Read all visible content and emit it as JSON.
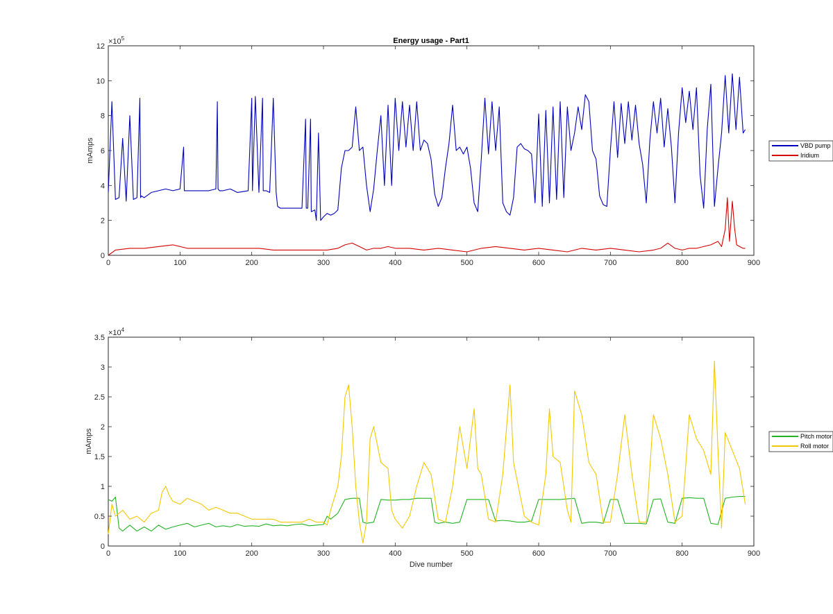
{
  "chart_data": [
    {
      "type": "line",
      "title": "Energy usage - Part1",
      "xlabel": "",
      "ylabel": "mAmps",
      "xlim": [
        0,
        900
      ],
      "ylim": [
        0,
        1200000
      ],
      "xticks": [
        0,
        100,
        200,
        300,
        400,
        500,
        600,
        700,
        800,
        900
      ],
      "yticks": [
        0,
        200000,
        400000,
        600000,
        800000,
        1000000,
        1200000
      ],
      "ytick_labels": [
        "0",
        "2",
        "4",
        "6",
        "8",
        "10",
        "12"
      ],
      "exponent_label": "×10",
      "exponent_power": "5",
      "legend_position": "outside-right",
      "series": [
        {
          "name": "VBD pump",
          "color": "#0000b8",
          "x": [
            0,
            5,
            10,
            15,
            20,
            25,
            30,
            35,
            40,
            44,
            45,
            46,
            50,
            60,
            70,
            80,
            90,
            100,
            105,
            106,
            110,
            120,
            130,
            140,
            150,
            152,
            153,
            155,
            160,
            170,
            180,
            195,
            200,
            201,
            205,
            210,
            215,
            216,
            220,
            225,
            230,
            234,
            236,
            240,
            250,
            260,
            270,
            275,
            276,
            278,
            282,
            283,
            288,
            290,
            293,
            296,
            300,
            305,
            310,
            315,
            320,
            325,
            330,
            335,
            340,
            345,
            350,
            355,
            360,
            365,
            370,
            375,
            380,
            385,
            390,
            395,
            400,
            405,
            410,
            415,
            420,
            425,
            430,
            435,
            440,
            445,
            450,
            455,
            460,
            465,
            470,
            475,
            480,
            485,
            490,
            495,
            500,
            505,
            510,
            515,
            520,
            525,
            530,
            535,
            540,
            545,
            550,
            555,
            560,
            565,
            570,
            575,
            580,
            585,
            590,
            595,
            600,
            605,
            610,
            615,
            620,
            625,
            630,
            635,
            640,
            645,
            650,
            655,
            660,
            665,
            670,
            675,
            680,
            685,
            690,
            695,
            700,
            705,
            710,
            715,
            720,
            725,
            730,
            735,
            740,
            745,
            750,
            755,
            760,
            765,
            770,
            775,
            780,
            785,
            790,
            795,
            800,
            805,
            810,
            815,
            820,
            825,
            830,
            835,
            840,
            845,
            850,
            855,
            860,
            865,
            870,
            875,
            880,
            885,
            888
          ],
          "y": [
            360000,
            880000,
            320000,
            330000,
            670000,
            310000,
            800000,
            320000,
            330000,
            900000,
            330000,
            340000,
            330000,
            360000,
            370000,
            380000,
            370000,
            380000,
            620000,
            370000,
            370000,
            370000,
            370000,
            370000,
            380000,
            880000,
            380000,
            370000,
            370000,
            380000,
            360000,
            370000,
            900000,
            370000,
            910000,
            360000,
            900000,
            370000,
            370000,
            360000,
            900000,
            360000,
            280000,
            270000,
            270000,
            270000,
            270000,
            780000,
            270000,
            270000,
            780000,
            250000,
            260000,
            200000,
            700000,
            200000,
            220000,
            240000,
            230000,
            240000,
            260000,
            500000,
            600000,
            600000,
            620000,
            850000,
            600000,
            620000,
            400000,
            250000,
            380000,
            600000,
            800000,
            400000,
            860000,
            400000,
            900000,
            600000,
            880000,
            620000,
            860000,
            600000,
            880000,
            600000,
            660000,
            640000,
            550000,
            350000,
            280000,
            330000,
            500000,
            640000,
            860000,
            600000,
            620000,
            580000,
            620000,
            500000,
            300000,
            250000,
            550000,
            900000,
            580000,
            880000,
            600000,
            850000,
            300000,
            250000,
            230000,
            330000,
            620000,
            640000,
            610000,
            600000,
            580000,
            300000,
            810000,
            280000,
            830000,
            300000,
            850000,
            320000,
            880000,
            330000,
            850000,
            600000,
            700000,
            850000,
            720000,
            920000,
            880000,
            600000,
            550000,
            340000,
            290000,
            280000,
            600000,
            880000,
            560000,
            870000,
            640000,
            880000,
            660000,
            860000,
            640000,
            520000,
            300000,
            660000,
            880000,
            700000,
            900000,
            620000,
            840000,
            620000,
            300000,
            700000,
            960000,
            760000,
            940000,
            720000,
            960000,
            460000,
            270000,
            720000,
            980000,
            280000,
            500000,
            700000,
            1030000,
            700000,
            1040000,
            720000,
            1020000,
            700000,
            720000
          ]
        },
        {
          "name": "Iridium",
          "color": "#d40000",
          "x": [
            0,
            10,
            30,
            50,
            70,
            90,
            110,
            130,
            150,
            170,
            190,
            210,
            230,
            250,
            270,
            290,
            305,
            320,
            330,
            340,
            350,
            360,
            370,
            380,
            390,
            400,
            410,
            420,
            440,
            460,
            480,
            500,
            520,
            540,
            560,
            580,
            600,
            620,
            640,
            660,
            680,
            700,
            720,
            740,
            760,
            770,
            780,
            790,
            800,
            810,
            820,
            830,
            840,
            850,
            855,
            860,
            863,
            866,
            870,
            873,
            876,
            880,
            885,
            888
          ],
          "y": [
            0,
            30000,
            40000,
            40000,
            50000,
            60000,
            40000,
            40000,
            40000,
            40000,
            40000,
            40000,
            30000,
            30000,
            30000,
            30000,
            30000,
            40000,
            60000,
            70000,
            50000,
            30000,
            40000,
            40000,
            50000,
            40000,
            40000,
            40000,
            30000,
            40000,
            30000,
            20000,
            40000,
            50000,
            40000,
            30000,
            40000,
            30000,
            20000,
            40000,
            30000,
            40000,
            30000,
            20000,
            30000,
            40000,
            70000,
            40000,
            30000,
            40000,
            40000,
            50000,
            60000,
            80000,
            50000,
            150000,
            330000,
            80000,
            310000,
            160000,
            60000,
            50000,
            40000,
            40000
          ]
        }
      ]
    },
    {
      "type": "line",
      "title": "",
      "xlabel": "Dive number",
      "ylabel": "mAmps",
      "xlim": [
        0,
        900
      ],
      "ylim": [
        0,
        35000
      ],
      "xticks": [
        0,
        100,
        200,
        300,
        400,
        500,
        600,
        700,
        800,
        900
      ],
      "yticks": [
        0,
        5000,
        10000,
        15000,
        20000,
        25000,
        30000,
        35000
      ],
      "ytick_labels": [
        "0",
        "0.5",
        "1",
        "1.5",
        "2",
        "2.5",
        "3",
        "3.5"
      ],
      "exponent_label": "×10",
      "exponent_power": "4",
      "legend_position": "outside-right",
      "series": [
        {
          "name": "Pitch motor",
          "color": "#22b322",
          "x": [
            0,
            5,
            10,
            15,
            20,
            30,
            40,
            50,
            60,
            70,
            80,
            90,
            100,
            110,
            120,
            130,
            140,
            150,
            160,
            170,
            180,
            190,
            200,
            210,
            220,
            230,
            240,
            250,
            260,
            270,
            280,
            290,
            300,
            305,
            310,
            320,
            330,
            340,
            350,
            355,
            360,
            370,
            380,
            390,
            400,
            410,
            420,
            430,
            440,
            450,
            455,
            460,
            470,
            480,
            490,
            500,
            510,
            520,
            530,
            540,
            550,
            560,
            570,
            580,
            590,
            600,
            610,
            620,
            630,
            640,
            650,
            660,
            670,
            680,
            690,
            700,
            710,
            720,
            730,
            740,
            750,
            760,
            770,
            780,
            790,
            800,
            810,
            820,
            830,
            840,
            850,
            860,
            870,
            880,
            888
          ],
          "y": [
            7800,
            7500,
            8200,
            3000,
            2500,
            3500,
            2500,
            3200,
            2500,
            3500,
            2800,
            3200,
            3500,
            3800,
            3200,
            3500,
            3800,
            3200,
            3400,
            3200,
            3600,
            3300,
            3400,
            3300,
            3700,
            3400,
            3500,
            3400,
            3600,
            3700,
            3400,
            3500,
            3600,
            5000,
            4500,
            5500,
            7800,
            8000,
            8000,
            4000,
            3800,
            4000,
            7800,
            7700,
            7700,
            7800,
            7800,
            8000,
            8000,
            8000,
            4000,
            3800,
            4000,
            3800,
            4000,
            7800,
            7800,
            7800,
            7800,
            4200,
            4300,
            4200,
            4000,
            4000,
            4200,
            7800,
            7800,
            7800,
            7800,
            7900,
            8000,
            3800,
            4000,
            4000,
            3800,
            7800,
            7800,
            3800,
            3800,
            3800,
            3700,
            7800,
            7900,
            4000,
            3800,
            8000,
            8100,
            8000,
            8000,
            3800,
            3600,
            8000,
            8200,
            8300,
            8300
          ]
        },
        {
          "name": "Roll motor",
          "color": "#f2c700",
          "x": [
            0,
            5,
            10,
            20,
            30,
            40,
            50,
            60,
            70,
            75,
            80,
            85,
            90,
            100,
            110,
            120,
            130,
            140,
            150,
            160,
            170,
            180,
            190,
            200,
            210,
            220,
            230,
            240,
            250,
            260,
            270,
            280,
            290,
            300,
            305,
            310,
            315,
            320,
            325,
            330,
            335,
            340,
            345,
            350,
            355,
            360,
            365,
            370,
            380,
            390,
            395,
            400,
            410,
            420,
            430,
            440,
            450,
            460,
            470,
            480,
            490,
            500,
            505,
            510,
            515,
            520,
            530,
            540,
            550,
            560,
            565,
            570,
            580,
            590,
            600,
            610,
            615,
            620,
            630,
            640,
            645,
            650,
            660,
            670,
            680,
            690,
            700,
            710,
            720,
            730,
            740,
            750,
            760,
            770,
            780,
            790,
            800,
            810,
            820,
            830,
            840,
            845,
            850,
            855,
            860,
            870,
            880,
            888
          ],
          "y": [
            2000,
            7000,
            5000,
            6000,
            4500,
            5000,
            4000,
            5500,
            6000,
            9000,
            10000,
            8500,
            7500,
            7000,
            8000,
            7500,
            7000,
            6000,
            6500,
            6000,
            5500,
            5500,
            5000,
            4500,
            4500,
            4500,
            4500,
            4000,
            4000,
            4000,
            4000,
            4500,
            4000,
            4000,
            3500,
            6000,
            8000,
            10000,
            15000,
            25000,
            27000,
            20000,
            10000,
            4000,
            500,
            4000,
            18000,
            20000,
            14000,
            13000,
            6000,
            4500,
            3000,
            5000,
            10000,
            14000,
            12000,
            4500,
            4000,
            10000,
            20000,
            13000,
            18000,
            23000,
            13000,
            12000,
            4500,
            4000,
            12000,
            27000,
            14000,
            11000,
            5000,
            4000,
            3500,
            12000,
            23000,
            15000,
            14000,
            6000,
            4000,
            26000,
            22000,
            14000,
            12000,
            4000,
            4000,
            12000,
            22000,
            12000,
            4000,
            4000,
            22000,
            18000,
            12000,
            4000,
            5000,
            22000,
            18000,
            16000,
            12000,
            31000,
            16000,
            3000,
            19000,
            16000,
            13000,
            7000
          ]
        }
      ]
    }
  ]
}
